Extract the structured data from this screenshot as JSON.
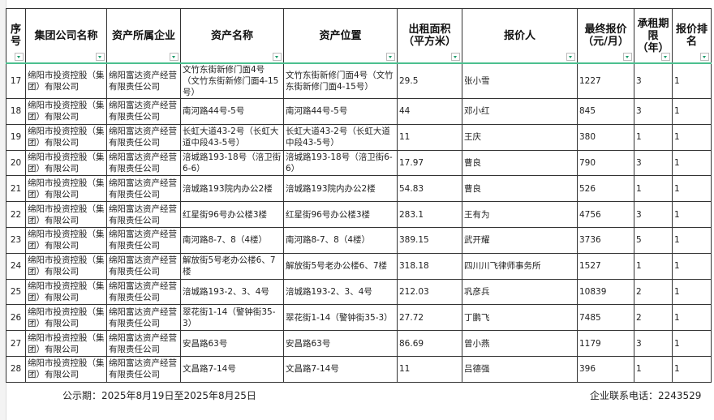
{
  "headers": [
    "序号",
    "集团公司名称",
    "资产所属企业",
    "资产名称",
    "资产位置",
    "出租面积（平方米）",
    "报价人",
    "最终报价（元/月）",
    "承租期限（年）",
    "报价排名"
  ],
  "rows": [
    [
      "17",
      "绵阳市投资控股（集团）有限公司",
      "绵阳富达资产经营有限责任公司",
      "文竹东街新修门面4号（文竹东街新修门面4-15号）",
      "文竹东街新修门面4号（文竹东街新修门面4-15号）",
      "29.5",
      "张小雪",
      "1227",
      "3",
      "1"
    ],
    [
      "18",
      "绵阳市投资控股（集团）有限公司",
      "绵阳富达资产经营有限责任公司",
      "南河路44号-5号",
      "南河路44号-5号",
      "44",
      "邓小红",
      "845",
      "3",
      "1"
    ],
    [
      "19",
      "绵阳市投资控股（集团）有限公司",
      "绵阳富达资产经营有限责任公司",
      "长虹大道43-2号（长虹大道中段43-5号）",
      "长虹大道43-2号（长虹大道中段43-5号）",
      "11",
      "王庆",
      "380",
      "1",
      "1"
    ],
    [
      "20",
      "绵阳市投资控股（集团）有限公司",
      "绵阳富达资产经营有限责任公司",
      "涪城路193-18号（涪卫街6-6）",
      "涪城路193-18号（涪卫街6-6）",
      "17.97",
      "曹良",
      "790",
      "3",
      "1"
    ],
    [
      "21",
      "绵阳市投资控股（集团）有限公司",
      "绵阳富达资产经营有限责任公司",
      "涪城路193院内办公2楼",
      "涪城路193院内办公2楼",
      "54.83",
      "曹良",
      "526",
      "1",
      "1"
    ],
    [
      "22",
      "绵阳市投资控股（集团）有限公司",
      "绵阳富达资产经营有限责任公司",
      "红星街96号办公楼3楼",
      "红星街96号办公楼3楼",
      "283.1",
      "王有为",
      "4756",
      "3",
      "1"
    ],
    [
      "23",
      "绵阳市投资控股（集团）有限公司",
      "绵阳富达资产经营有限责任公司",
      "南河路8-7、8（4楼）",
      "南河路8-7、8（4楼）",
      "389.15",
      "武开耀",
      "3736",
      "5",
      "1"
    ],
    [
      "24",
      "绵阳市投资控股（集团）有限公司",
      "绵阳富达资产经营有限责任公司",
      "解放街5号老办公楼6、7楼",
      "解放街5号老办公楼6、7楼",
      "318.18",
      "四川川飞律师事务所",
      "1527",
      "1",
      "1"
    ],
    [
      "25",
      "绵阳市投资控股（集团）有限公司",
      "绵阳富达资产经营有限责任公司",
      "涪城路193-2、3、4号",
      "涪城路193-2、3、4号",
      "212.03",
      "巩彦兵",
      "10839",
      "2",
      "1"
    ],
    [
      "26",
      "绵阳市投资控股（集团）有限公司",
      "绵阳富达资产经营有限责任公司",
      "翠花街1-14（警钟街35-3）",
      "翠花街1-14（警钟街35-3）",
      "27.72",
      "丁鹏飞",
      "7485",
      "2",
      "1"
    ],
    [
      "27",
      "绵阳市投资控股（集团）有限公司",
      "绵阳富达资产经营有限责任公司",
      "安昌路63号",
      "安昌路63号",
      "86.69",
      "曾小燕",
      "1179",
      "3",
      "1"
    ],
    [
      "28",
      "绵阳市投资控股（集团）有限公司",
      "绵阳富达资产经营有限责任公司",
      "文昌路7-14号",
      "文昌路7-14号",
      "11",
      "吕德强",
      "396",
      "1",
      "1"
    ]
  ],
  "footer": {
    "notice": "公示期：2025年8月19日至2025年8月25日",
    "contact": "企业联系电话：2243529"
  },
  "colors": {
    "filter_accent": "#1a9a6a",
    "header_border": "#4cc08f"
  }
}
